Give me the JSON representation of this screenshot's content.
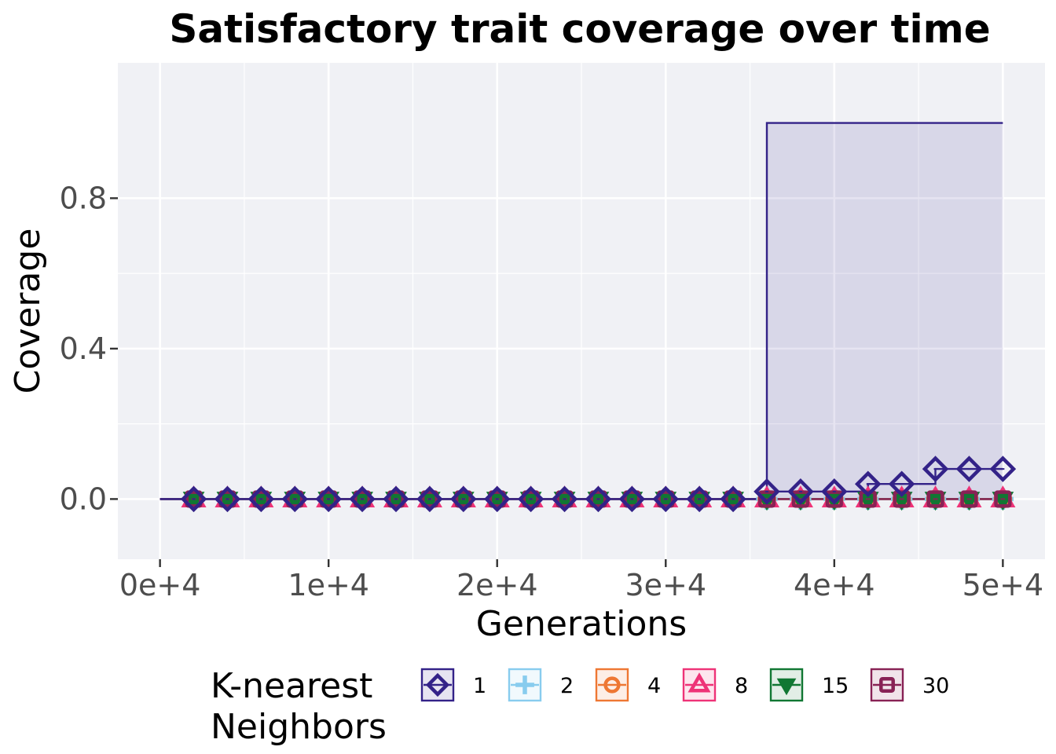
{
  "chart_data": {
    "type": "line",
    "title": "Satisfactory trait coverage over time",
    "xlabel": "Generations",
    "ylabel": "Coverage",
    "xlim": [
      -2500,
      52500
    ],
    "ylim": [
      -0.16,
      1.16
    ],
    "x_ticks": [
      0,
      10000,
      20000,
      30000,
      40000,
      50000
    ],
    "x_tick_labels": [
      "0e+4",
      "1e+4",
      "2e+4",
      "3e+4",
      "4e+4",
      "5e+4"
    ],
    "y_ticks": [
      0,
      0.4,
      0.8
    ],
    "y_tick_labels": [
      "0.0",
      "0.4",
      "0.8"
    ],
    "grid": true,
    "legend": {
      "title": "K-nearest\nNeighbors",
      "position": "bottom"
    },
    "x": [
      0,
      2000,
      4000,
      6000,
      8000,
      10000,
      12000,
      14000,
      16000,
      18000,
      20000,
      22000,
      24000,
      26000,
      28000,
      30000,
      32000,
      34000,
      36000,
      38000,
      40000,
      42000,
      44000,
      46000,
      48000,
      50000
    ],
    "series": [
      {
        "name": "1",
        "color": "#332288",
        "marker": "diamond",
        "values": [
          0,
          0,
          0,
          0,
          0,
          0,
          0,
          0,
          0,
          0,
          0,
          0,
          0,
          0,
          0,
          0,
          0,
          0,
          0.02,
          0.02,
          0.02,
          0.04,
          0.04,
          0.08,
          0.08,
          0.08
        ],
        "band_upper": [
          0,
          0,
          0,
          0,
          0,
          0,
          0,
          0,
          0,
          0,
          0,
          0,
          0,
          0,
          0,
          0,
          0,
          0,
          1,
          1,
          1,
          1,
          1,
          1,
          1,
          1
        ],
        "band_lower": [
          0,
          0,
          0,
          0,
          0,
          0,
          0,
          0,
          0,
          0,
          0,
          0,
          0,
          0,
          0,
          0,
          0,
          0,
          0,
          0,
          0,
          0,
          0,
          0,
          0,
          0
        ]
      },
      {
        "name": "2",
        "color": "#88CCEE",
        "marker": "plus",
        "values": [
          0,
          0,
          0,
          0,
          0,
          0,
          0,
          0,
          0,
          0,
          0,
          0,
          0,
          0,
          0,
          0,
          0,
          0,
          0,
          0,
          0,
          0,
          0,
          0,
          0,
          0
        ]
      },
      {
        "name": "4",
        "color": "#EE7733",
        "marker": "circle",
        "values": [
          0,
          0,
          0,
          0,
          0,
          0,
          0,
          0,
          0,
          0,
          0,
          0,
          0,
          0,
          0,
          0,
          0,
          0,
          0,
          0,
          0,
          0,
          0,
          0,
          0,
          0
        ]
      },
      {
        "name": "8",
        "color": "#EE3377",
        "marker": "triangle-up",
        "values": [
          0,
          0,
          0,
          0,
          0,
          0,
          0,
          0,
          0,
          0,
          0,
          0,
          0,
          0,
          0,
          0,
          0,
          0,
          0,
          0,
          0,
          0,
          0,
          0,
          0,
          0
        ]
      },
      {
        "name": "15",
        "color": "#117733",
        "marker": "triangle-down",
        "values": [
          0,
          0,
          0,
          0,
          0,
          0,
          0,
          0,
          0,
          0,
          0,
          0,
          0,
          0,
          0,
          0,
          0,
          0,
          0,
          0,
          0,
          0,
          0,
          0,
          0,
          0
        ]
      },
      {
        "name": "30",
        "color": "#882255",
        "marker": "square",
        "values": [
          0,
          0,
          0,
          0,
          0,
          0,
          0,
          0,
          0,
          0,
          0,
          0,
          0,
          0,
          0,
          0,
          0,
          0,
          0,
          0,
          0,
          0,
          0,
          0,
          0,
          0
        ]
      }
    ]
  }
}
